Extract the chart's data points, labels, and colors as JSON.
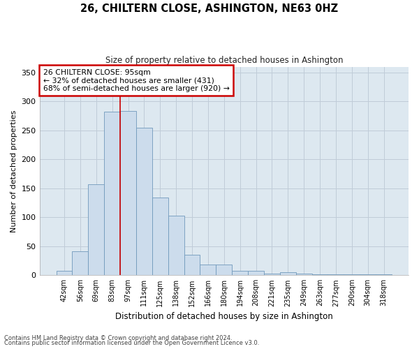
{
  "title": "26, CHILTERN CLOSE, ASHINGTON, NE63 0HZ",
  "subtitle": "Size of property relative to detached houses in Ashington",
  "xlabel": "Distribution of detached houses by size in Ashington",
  "ylabel": "Number of detached properties",
  "categories": [
    "42sqm",
    "56sqm",
    "69sqm",
    "83sqm",
    "97sqm",
    "111sqm",
    "125sqm",
    "138sqm",
    "152sqm",
    "166sqm",
    "180sqm",
    "194sqm",
    "208sqm",
    "221sqm",
    "235sqm",
    "249sqm",
    "263sqm",
    "277sqm",
    "290sqm",
    "304sqm",
    "318sqm"
  ],
  "values": [
    8,
    41,
    157,
    282,
    283,
    255,
    134,
    103,
    35,
    19,
    18,
    8,
    7,
    3,
    5,
    3,
    2,
    2,
    1,
    1,
    2
  ],
  "bar_color": "#ccdcec",
  "bar_edge_color": "#7099bb",
  "red_line_x": 3.5,
  "red_line_color": "#cc0000",
  "annotation_title": "26 CHILTERN CLOSE: 95sqm",
  "annotation_line1": "← 32% of detached houses are smaller (431)",
  "annotation_line2": "68% of semi-detached houses are larger (920) →",
  "annotation_box_color": "#ffffff",
  "annotation_box_edge": "#cc0000",
  "grid_color": "#c0ccd8",
  "background_color": "#dde8f0",
  "ylim": [
    0,
    360
  ],
  "yticks": [
    0,
    50,
    100,
    150,
    200,
    250,
    300,
    350
  ],
  "footer1": "Contains HM Land Registry data © Crown copyright and database right 2024.",
  "footer2": "Contains public sector information licensed under the Open Government Licence v3.0."
}
